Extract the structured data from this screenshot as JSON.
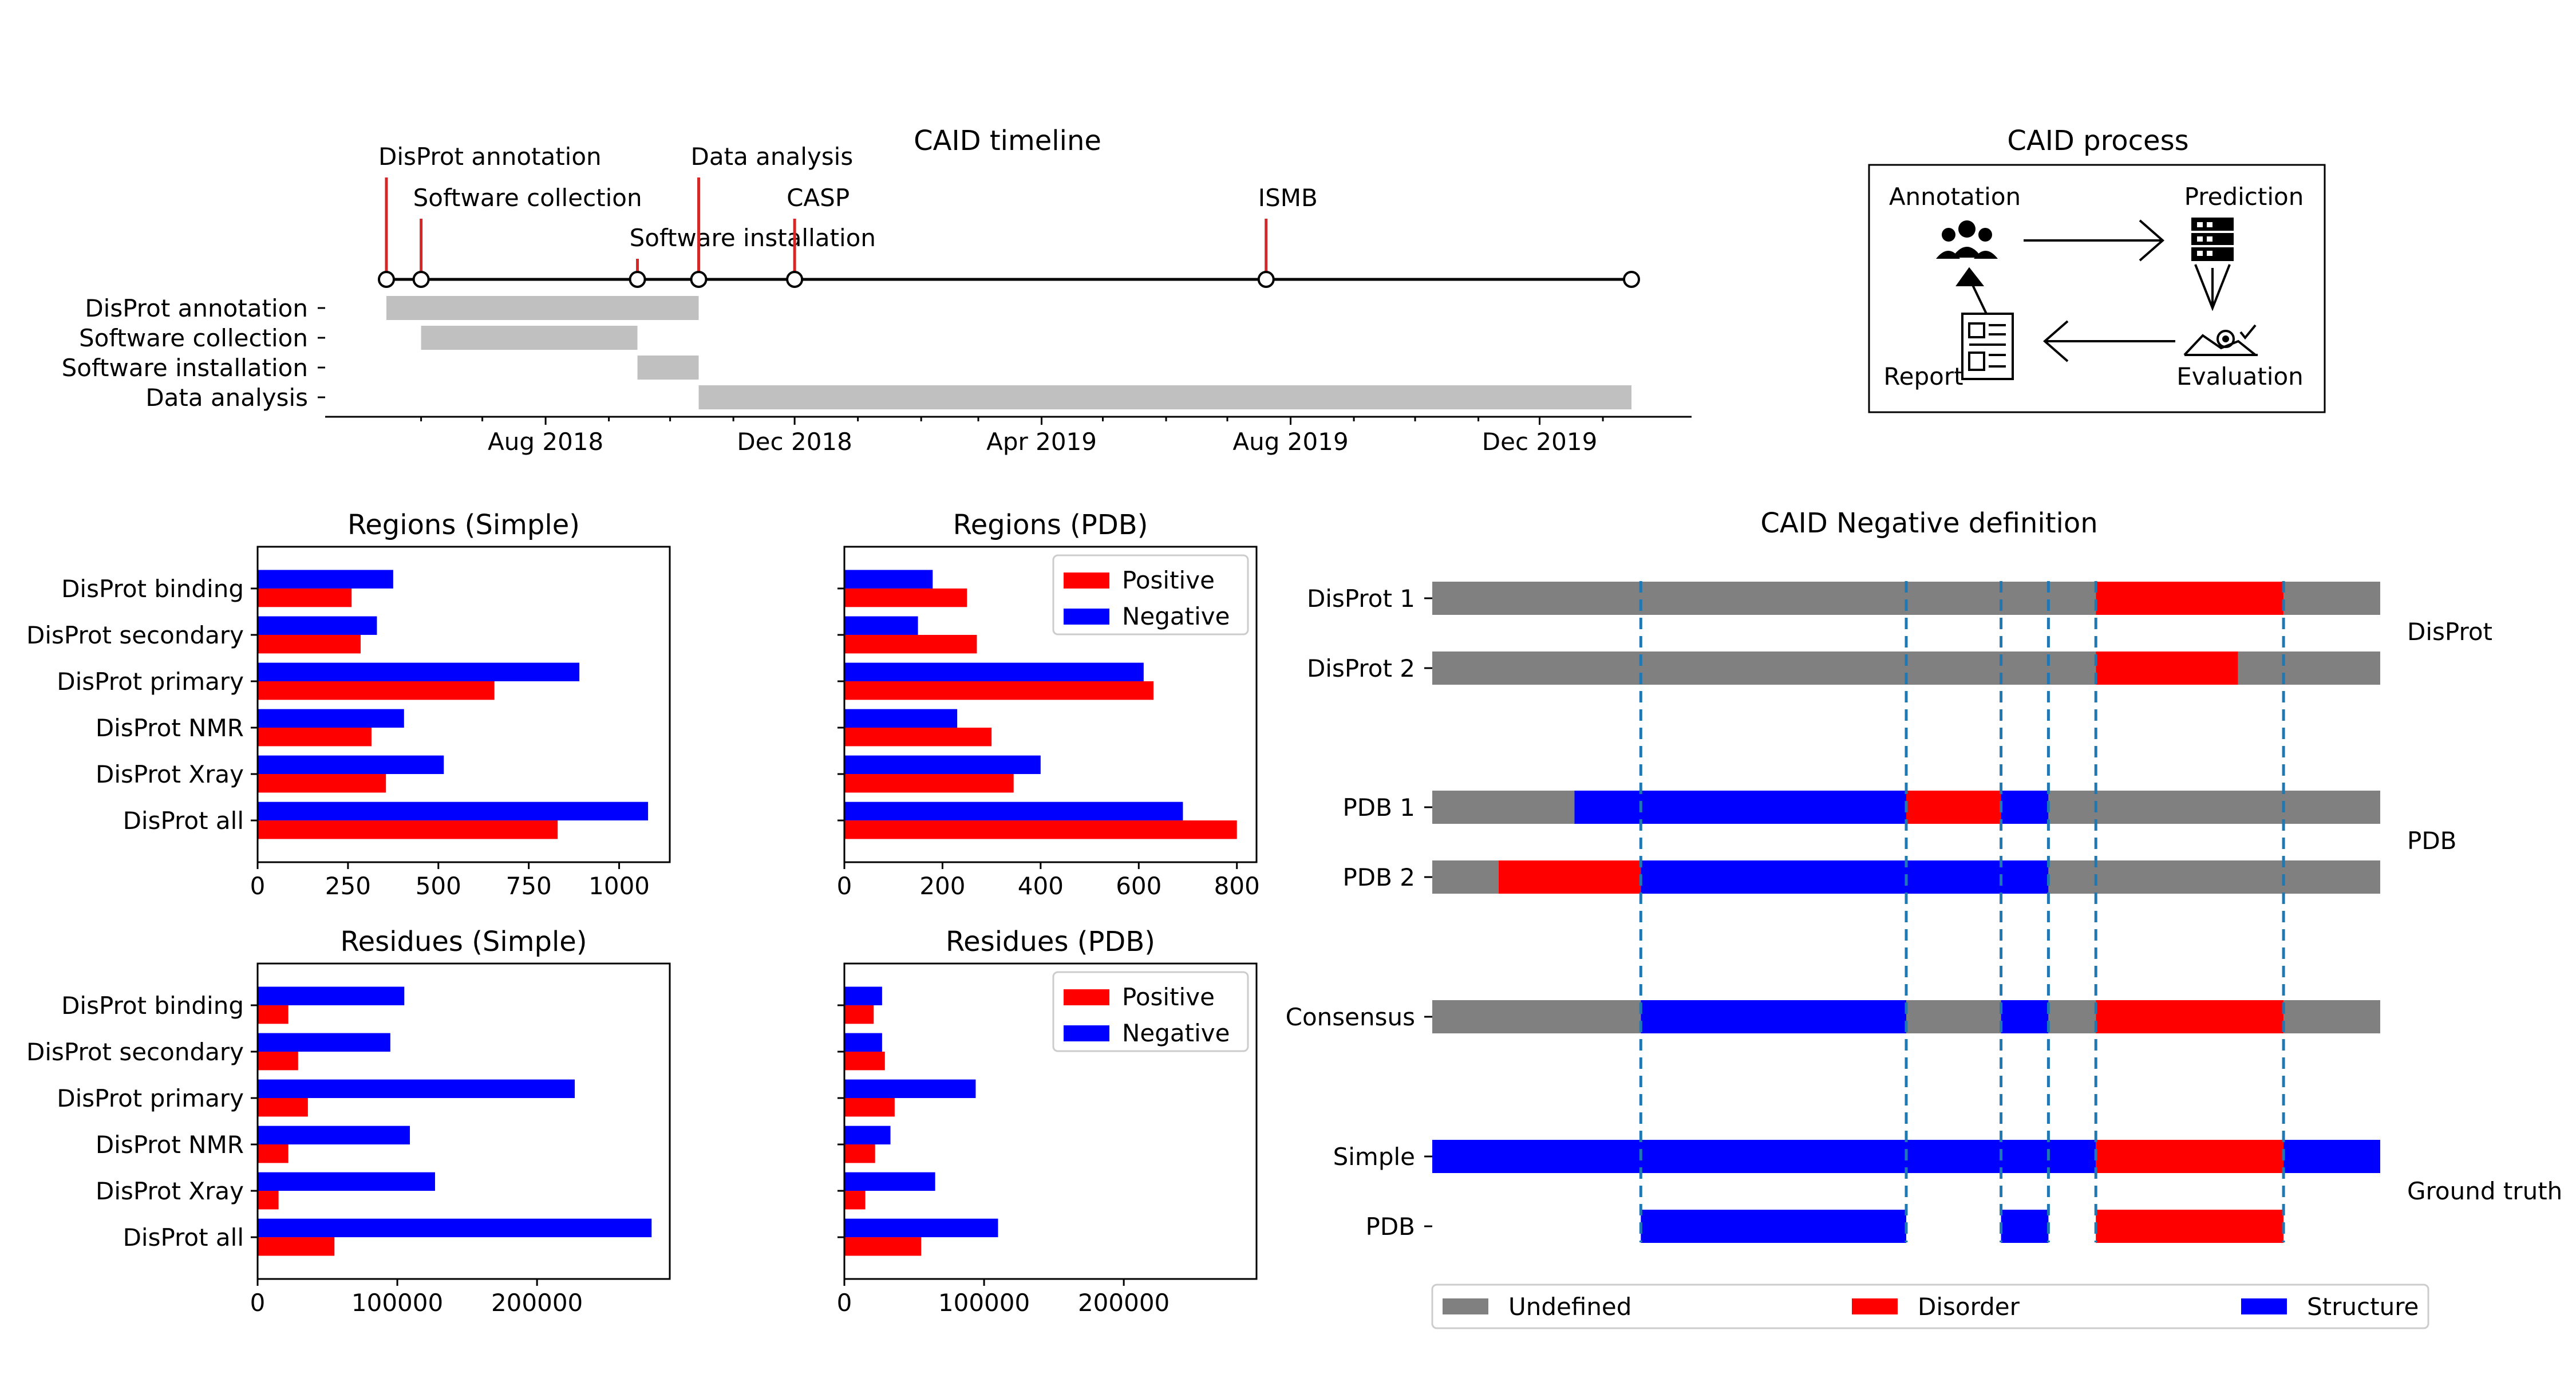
{
  "timeline": {
    "title": "CAID timeline",
    "date_ticks": [
      "Aug 2018",
      "Dec 2018",
      "Apr 2019",
      "Aug 2019",
      "Dec 2019"
    ],
    "events": [
      {
        "label": "DisProt annotation",
        "date": "2018-05-15"
      },
      {
        "label": "Software collection",
        "date": "2018-06-01"
      },
      {
        "label": "Software installation",
        "date": "2018-09-15"
      },
      {
        "label": "Data analysis",
        "date": "2018-10-15"
      },
      {
        "label": "CASP",
        "date": "2018-12-01"
      },
      {
        "label": "ISMB",
        "date": "2019-07-20"
      },
      {
        "label": "",
        "date": "2020-01-15"
      }
    ],
    "phases": [
      {
        "label": "DisProt annotation",
        "start": "2018-05-15",
        "end": "2018-10-15"
      },
      {
        "label": "Software collection",
        "start": "2018-06-01",
        "end": "2018-09-15"
      },
      {
        "label": "Software installation",
        "start": "2018-09-15",
        "end": "2018-10-15"
      },
      {
        "label": "Data analysis",
        "start": "2018-10-15",
        "end": "2020-01-15"
      }
    ]
  },
  "process": {
    "title": "CAID process",
    "nodes": {
      "annotation": "Annotation",
      "prediction": "Prediction",
      "evaluation": "Evaluation",
      "report": "Report"
    }
  },
  "negative_definition": {
    "title": "CAID Negative definition",
    "rows": [
      {
        "label": "DisProt 1",
        "segments": [
          [
            "u",
            0,
            0.7
          ],
          [
            "d",
            0.7,
            0.898
          ],
          [
            "u",
            0.898,
            1
          ]
        ]
      },
      {
        "label": "DisProt 2",
        "segments": [
          [
            "u",
            0,
            0.7
          ],
          [
            "d",
            0.7,
            0.85
          ],
          [
            "u",
            0.85,
            1
          ]
        ]
      },
      {
        "label": "PDB 1",
        "segments": [
          [
            "u",
            0,
            0.15
          ],
          [
            "s",
            0.15,
            0.5
          ],
          [
            "d",
            0.5,
            0.6
          ],
          [
            "s",
            0.6,
            0.65
          ],
          [
            "u",
            0.65,
            1
          ]
        ]
      },
      {
        "label": "PDB 2",
        "segments": [
          [
            "u",
            0,
            0.07
          ],
          [
            "d",
            0.07,
            0.22
          ],
          [
            "s",
            0.22,
            0.65
          ],
          [
            "u",
            0.65,
            1
          ]
        ]
      },
      {
        "label": "Consensus",
        "segments": [
          [
            "u",
            0,
            0.22
          ],
          [
            "s",
            0.22,
            0.5
          ],
          [
            "u",
            0.5,
            0.6
          ],
          [
            "s",
            0.6,
            0.65
          ],
          [
            "u",
            0.65,
            0.7
          ],
          [
            "d",
            0.7,
            0.898
          ],
          [
            "u",
            0.898,
            1
          ]
        ]
      },
      {
        "label": "Simple",
        "segments": [
          [
            "s",
            0,
            0.7
          ],
          [
            "d",
            0.7,
            0.898
          ],
          [
            "s",
            0.898,
            1
          ]
        ]
      },
      {
        "label": "PDB",
        "segments": [
          [
            "s",
            0.22,
            0.5
          ],
          [
            "s",
            0.6,
            0.65
          ],
          [
            "d",
            0.7,
            0.898
          ]
        ]
      }
    ],
    "dividers": [
      0.22,
      0.5,
      0.6,
      0.65,
      0.7,
      0.898
    ],
    "group_labels": [
      "DisProt",
      "PDB",
      "Ground truth"
    ],
    "legend": {
      "undefined": "Undefined",
      "disorder": "Disorder",
      "structure": "Structure"
    },
    "colors": {
      "undefined": "#808080",
      "disorder": "#ff0000",
      "structure": "#0000ff",
      "divider": "#1f77b4"
    }
  },
  "chart_data": [
    {
      "type": "bar",
      "orientation": "horizontal",
      "title": "Regions (Simple)",
      "categories": [
        "DisProt binding",
        "DisProt secondary",
        "DisProt primary",
        "DisProt NMR",
        "DisProt Xray",
        "DisProt all"
      ],
      "series": [
        {
          "name": "Positive",
          "color": "#ff0000",
          "values": [
            260,
            285,
            655,
            315,
            355,
            830
          ]
        },
        {
          "name": "Negative",
          "color": "#0000ff",
          "values": [
            375,
            330,
            890,
            405,
            515,
            1080
          ]
        }
      ],
      "xlim": [
        0,
        1140
      ],
      "xticks": [
        0,
        250,
        500,
        750,
        1000
      ],
      "xtick_labels": [
        "0",
        "250",
        "500",
        "750",
        "1000"
      ],
      "legend": false
    },
    {
      "type": "bar",
      "orientation": "horizontal",
      "title": "Regions (PDB)",
      "categories": [
        "DisProt binding",
        "DisProt secondary",
        "DisProt primary",
        "DisProt NMR",
        "DisProt Xray",
        "DisProt all"
      ],
      "series": [
        {
          "name": "Positive",
          "color": "#ff0000",
          "values": [
            250,
            270,
            630,
            300,
            345,
            800
          ]
        },
        {
          "name": "Negative",
          "color": "#0000ff",
          "values": [
            180,
            150,
            610,
            230,
            400,
            690
          ]
        }
      ],
      "xlim": [
        0,
        840
      ],
      "xticks": [
        0,
        200,
        400,
        600,
        800
      ],
      "xtick_labels": [
        "0",
        "200",
        "400",
        "600",
        "800"
      ],
      "legend": true
    },
    {
      "type": "bar",
      "orientation": "horizontal",
      "title": "Residues (Simple)",
      "categories": [
        "DisProt binding",
        "DisProt secondary",
        "DisProt primary",
        "DisProt NMR",
        "DisProt Xray",
        "DisProt all"
      ],
      "series": [
        {
          "name": "Positive",
          "color": "#ff0000",
          "values": [
            22000,
            29000,
            36000,
            22000,
            15000,
            55000
          ]
        },
        {
          "name": "Negative",
          "color": "#0000ff",
          "values": [
            105000,
            95000,
            227000,
            109000,
            127000,
            282000
          ]
        }
      ],
      "xlim": [
        0,
        295000
      ],
      "xticks": [
        0,
        100000,
        200000
      ],
      "xtick_labels": [
        "0",
        "100000",
        "200000"
      ],
      "legend": false
    },
    {
      "type": "bar",
      "orientation": "horizontal",
      "title": "Residues (PDB)",
      "categories": [
        "DisProt binding",
        "DisProt secondary",
        "DisProt primary",
        "DisProt NMR",
        "DisProt Xray",
        "DisProt all"
      ],
      "series": [
        {
          "name": "Positive",
          "color": "#ff0000",
          "values": [
            21000,
            29000,
            36000,
            22000,
            15000,
            55000
          ]
        },
        {
          "name": "Negative",
          "color": "#0000ff",
          "values": [
            27000,
            27000,
            94000,
            33000,
            65000,
            110000
          ]
        }
      ],
      "xlim": [
        0,
        295000
      ],
      "xticks": [
        0,
        100000,
        200000
      ],
      "xtick_labels": [
        "0",
        "100000",
        "200000"
      ],
      "legend": true
    }
  ]
}
